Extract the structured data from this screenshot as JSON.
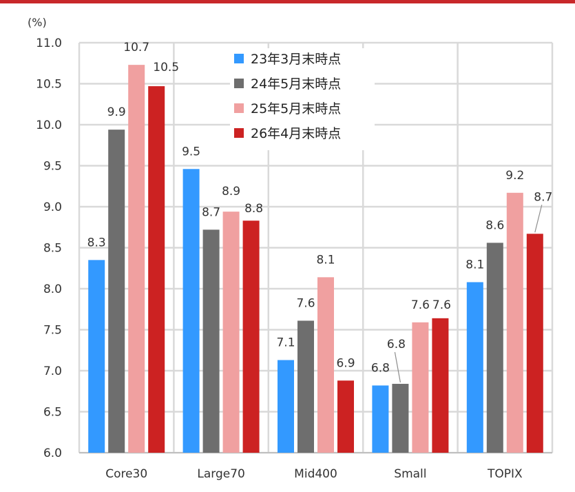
{
  "chart_data": {
    "type": "bar",
    "unit_label": "(%)",
    "categories": [
      "Core30",
      "Large70",
      "Mid400",
      "Small",
      "TOPIX"
    ],
    "series": [
      {
        "name": "23年3月末時点",
        "color": "#3399ff",
        "values": [
          8.35,
          9.46,
          7.13,
          6.82,
          8.08
        ],
        "labels": [
          "8.3",
          "9.5",
          "7.1",
          "6.8",
          "8.1"
        ]
      },
      {
        "name": "24年5月末時点",
        "color": "#6e6e6e",
        "values": [
          9.94,
          8.72,
          7.61,
          6.84,
          8.56
        ],
        "labels": [
          "9.9",
          "8.7",
          "7.6",
          "6.8",
          "8.6"
        ]
      },
      {
        "name": "25年5月末時点",
        "color": "#f0a0a0",
        "values": [
          10.73,
          8.94,
          8.14,
          7.59,
          9.17
        ],
        "labels": [
          "10.7",
          "8.9",
          "8.1",
          "7.6",
          "9.2"
        ]
      },
      {
        "name": "26年4月末時点",
        "color": "#cc2222",
        "values": [
          10.47,
          8.83,
          6.88,
          7.64,
          8.67
        ],
        "labels": [
          "10.5",
          "8.8",
          "6.9",
          "7.6",
          "8.7"
        ]
      }
    ],
    "ylim": [
      6.0,
      11.0
    ],
    "yticks": [
      "6.0",
      "6.5",
      "7.0",
      "7.5",
      "8.0",
      "8.5",
      "9.0",
      "9.5",
      "10.0",
      "10.5",
      "11.0"
    ],
    "grid": true,
    "legend_position": "top-center"
  }
}
